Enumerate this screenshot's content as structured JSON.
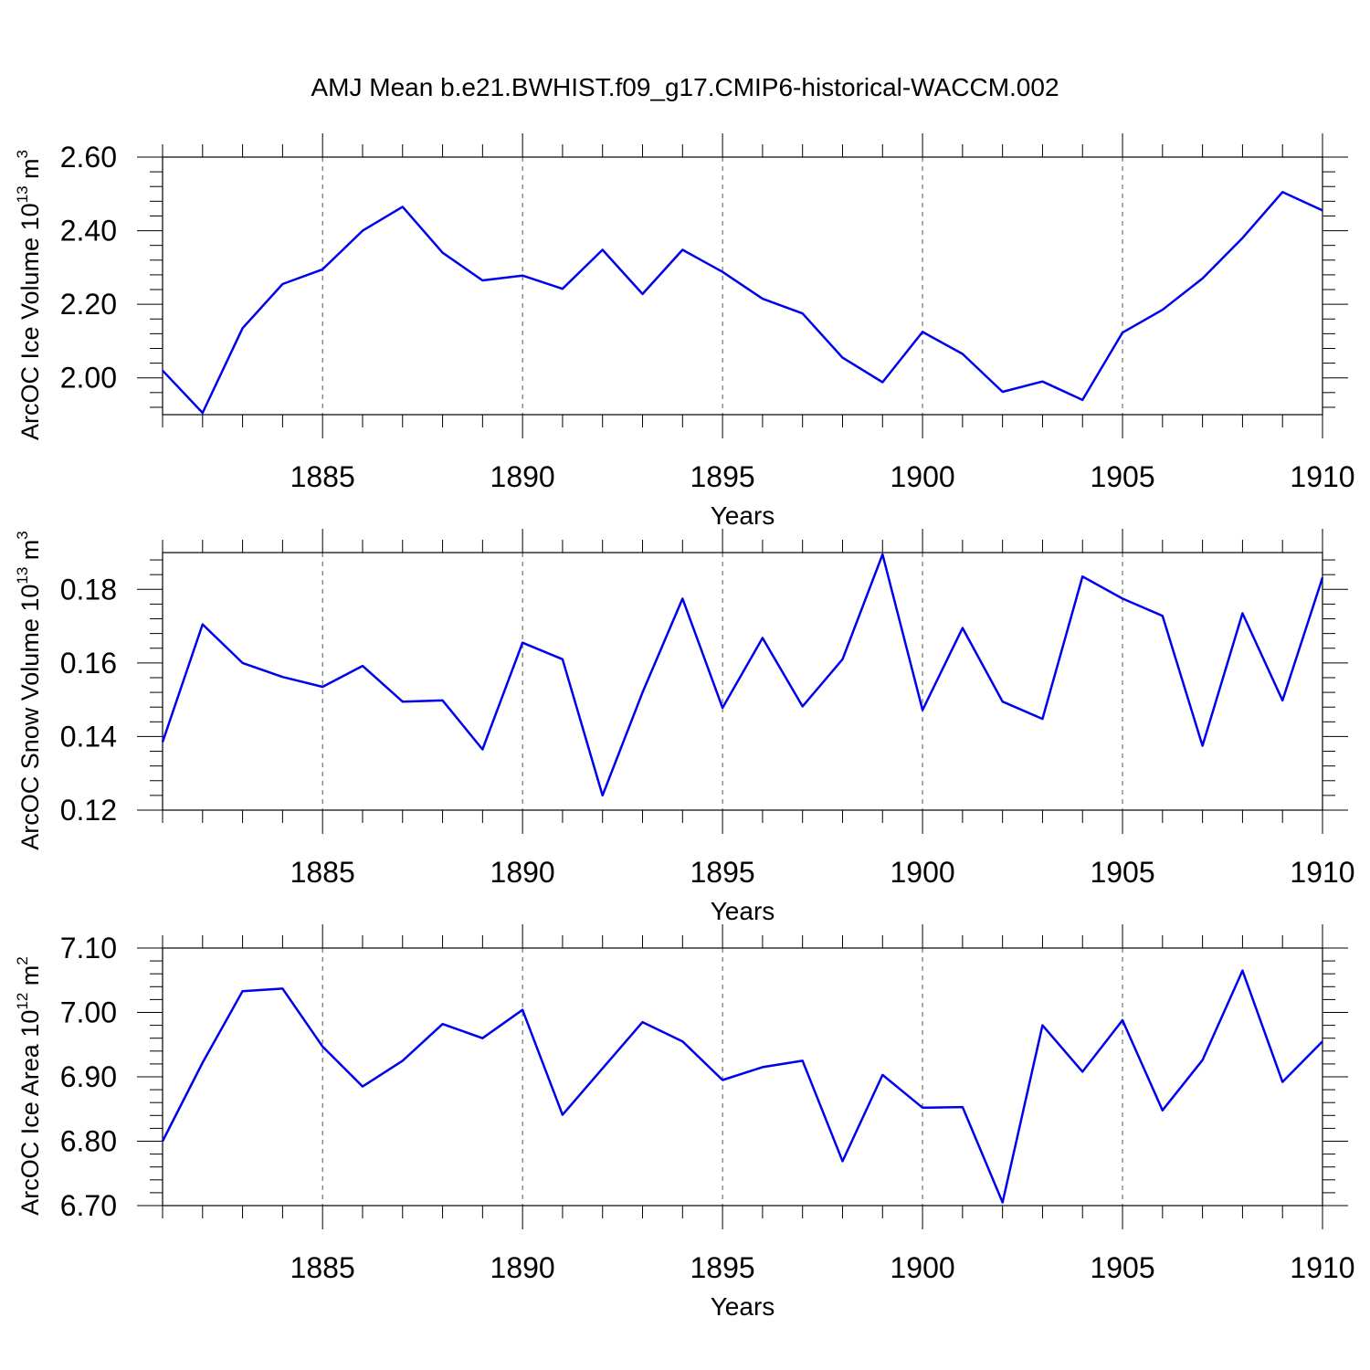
{
  "title": "AMJ Mean b.e21.BWHIST.f09_g17.CMIP6-historical-WACCM.002",
  "chart_data": [
    {
      "type": "line",
      "xlabel": "Years",
      "ylabel": {
        "text": "ArcOC Ice Volume 10",
        "sup": "13",
        "unit": " m",
        "unit_sup": "3"
      },
      "xlim": [
        1881,
        1910
      ],
      "ylim": [
        1.9,
        2.6
      ],
      "grid": "vertical-dashed",
      "x_ticks": [
        "1885",
        "1890",
        "1895",
        "1900",
        "1905",
        "1910"
      ],
      "y_ticks": [
        "2.00",
        "2.20",
        "2.40",
        "2.60"
      ],
      "color": "#0000ee",
      "x": [
        1881,
        1882,
        1883,
        1884,
        1885,
        1886,
        1887,
        1888,
        1889,
        1890,
        1891,
        1892,
        1893,
        1894,
        1895,
        1896,
        1897,
        1898,
        1899,
        1900,
        1901,
        1902,
        1903,
        1904,
        1905,
        1906,
        1907,
        1908,
        1909,
        1910
      ],
      "values": [
        2.02,
        1.905,
        2.135,
        2.255,
        2.295,
        2.4,
        2.465,
        2.34,
        2.265,
        2.278,
        2.242,
        2.348,
        2.228,
        2.348,
        2.288,
        2.215,
        2.175,
        2.055,
        1.988,
        2.125,
        2.065,
        1.962,
        1.99,
        1.94,
        2.123,
        2.185,
        2.27,
        2.38,
        2.505,
        2.455
      ]
    },
    {
      "type": "line",
      "xlabel": "Years",
      "ylabel": {
        "text": "ArcOC Snow Volume 10",
        "sup": "13",
        "unit": " m",
        "unit_sup": "3"
      },
      "xlim": [
        1881,
        1910
      ],
      "ylim": [
        0.12,
        0.19
      ],
      "grid": "vertical-dashed",
      "x_ticks": [
        "1885",
        "1890",
        "1895",
        "1900",
        "1905",
        "1910"
      ],
      "y_ticks": [
        "0.12",
        "0.14",
        "0.16",
        "0.18"
      ],
      "color": "#0000ee",
      "x": [
        1881,
        1882,
        1883,
        1884,
        1885,
        1886,
        1887,
        1888,
        1889,
        1890,
        1891,
        1892,
        1893,
        1894,
        1895,
        1896,
        1897,
        1898,
        1899,
        1900,
        1901,
        1902,
        1903,
        1904,
        1905,
        1906,
        1907,
        1908,
        1909,
        1910
      ],
      "values": [
        0.1385,
        0.1705,
        0.16,
        0.1562,
        0.1535,
        0.1592,
        0.1495,
        0.1498,
        0.1365,
        0.1655,
        0.161,
        0.124,
        0.152,
        0.1775,
        0.1478,
        0.1668,
        0.1482,
        0.161,
        0.1895,
        0.1472,
        0.1695,
        0.1495,
        0.1448,
        0.1835,
        0.1775,
        0.1728,
        0.1375,
        0.1735,
        0.1498,
        0.1832
      ]
    },
    {
      "type": "line",
      "xlabel": "Years",
      "ylabel": {
        "text": "ArcOC Ice Area 10",
        "sup": "12",
        "unit": " m",
        "unit_sup": "2"
      },
      "xlim": [
        1881,
        1910
      ],
      "ylim": [
        6.7,
        7.1
      ],
      "grid": "vertical-dashed",
      "x_ticks": [
        "1885",
        "1890",
        "1895",
        "1900",
        "1905",
        "1910"
      ],
      "y_ticks": [
        "6.70",
        "6.80",
        "6.90",
        "7.00",
        "7.10"
      ],
      "color": "#0000ee",
      "x": [
        1881,
        1882,
        1883,
        1884,
        1885,
        1886,
        1887,
        1888,
        1889,
        1890,
        1891,
        1892,
        1893,
        1894,
        1895,
        1896,
        1897,
        1898,
        1899,
        1900,
        1901,
        1902,
        1903,
        1904,
        1905,
        1906,
        1907,
        1908,
        1909,
        1910
      ],
      "values": [
        6.8,
        6.922,
        7.033,
        7.037,
        6.947,
        6.885,
        6.925,
        6.982,
        6.96,
        7.004,
        6.841,
        6.913,
        6.985,
        6.955,
        6.895,
        6.915,
        6.925,
        6.769,
        6.903,
        6.852,
        6.853,
        6.705,
        6.98,
        6.908,
        6.988,
        6.848,
        6.926,
        7.065,
        6.892,
        6.955
      ]
    }
  ]
}
